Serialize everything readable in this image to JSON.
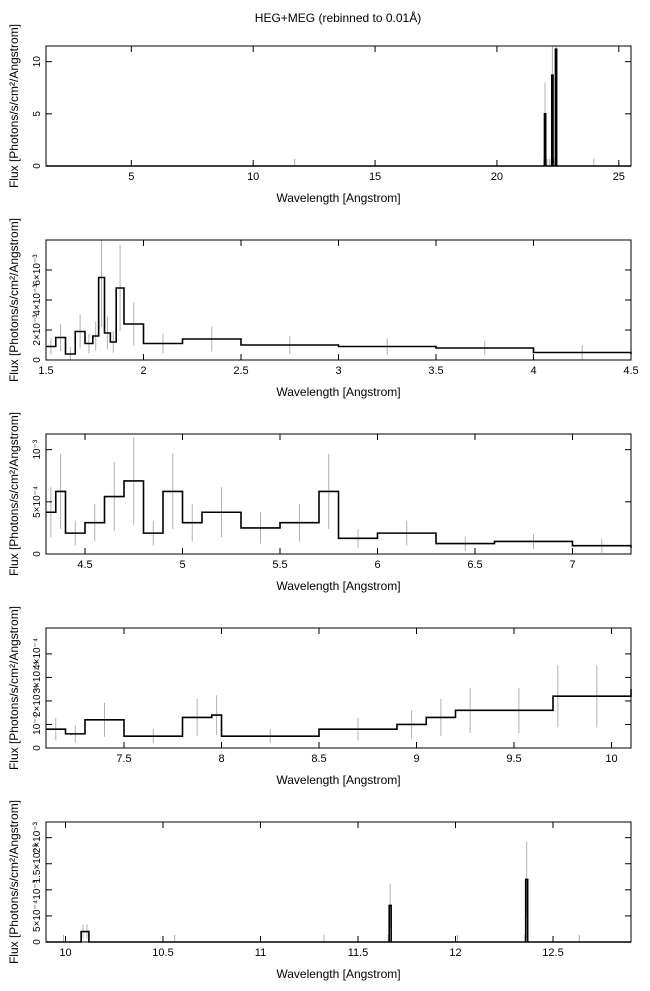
{
  "figure": {
    "title": "HEG+MEG (rebinned to 0.01Å)"
  },
  "colors": {
    "data": "#000000",
    "error_bars": "#b0b0b0",
    "frame": "#000000"
  },
  "chart_data": [
    {
      "type": "line",
      "step": true,
      "xlabel": "Wavelength [Angstrom]",
      "ylabel": "Flux [Photons/s/cm²/Angstrom]",
      "xlim": [
        1.5,
        25.5
      ],
      "ylim": [
        0,
        11.5
      ],
      "xticks": [
        5,
        10,
        15,
        20,
        25
      ],
      "xtick_labels": [
        "5",
        "10",
        "15",
        "20",
        "25"
      ],
      "yticks": [
        0,
        5,
        10
      ],
      "ytick_labels": [
        "0",
        "5",
        "10"
      ],
      "series": [
        {
          "x": [
            1.5,
            21.9,
            21.95,
            22.0,
            22.1,
            22.2,
            22.25,
            22.3,
            22.35,
            22.4,
            22.45,
            25.5
          ],
          "y": [
            0,
            0,
            5.0,
            0,
            0,
            0,
            8.7,
            0,
            0,
            11.2,
            0,
            0
          ]
        }
      ]
    },
    {
      "type": "line",
      "step": true,
      "xlabel": "Wavelength [Angstrom]",
      "ylabel": "Flux [Photons/s/cm²/Angstrom]",
      "xlim": [
        1.5,
        4.5
      ],
      "ylim": [
        0,
        0.008
      ],
      "xticks": [
        1.5,
        2,
        2.5,
        3,
        3.5,
        4,
        4.5
      ],
      "xtick_labels": [
        "1.5",
        "2",
        "2.5",
        "3",
        "3.5",
        "4",
        "4.5"
      ],
      "yticks": [
        0,
        0.002,
        0.004,
        0.006
      ],
      "ytick_labels": [
        "0",
        "2×10⁻³",
        "4×10⁻³",
        "6×10⁻³"
      ],
      "series": [
        {
          "x": [
            1.5,
            1.55,
            1.6,
            1.65,
            1.7,
            1.74,
            1.77,
            1.8,
            1.83,
            1.86,
            1.9,
            2.0,
            2.2,
            2.5,
            3.0,
            3.5,
            4.0,
            4.5
          ],
          "y": [
            0.0009,
            0.0015,
            0.0004,
            0.0019,
            0.0011,
            0.0016,
            0.0055,
            0.0018,
            0.0012,
            0.0048,
            0.0024,
            0.0011,
            0.0014,
            0.001,
            0.0009,
            0.0008,
            0.0005,
            0.0004
          ]
        }
      ]
    },
    {
      "type": "line",
      "step": true,
      "xlabel": "Wavelength [Angstrom]",
      "ylabel": "Flux [Photons/s/cm²/Angstrom]",
      "xlim": [
        4.3,
        7.3
      ],
      "ylim": [
        0,
        0.00115
      ],
      "xticks": [
        4.5,
        5,
        5.5,
        6,
        6.5,
        7
      ],
      "xtick_labels": [
        "4.5",
        "5",
        "5.5",
        "6",
        "6.5",
        "7"
      ],
      "yticks": [
        0,
        0.0005,
        0.001
      ],
      "ytick_labels": [
        "0",
        "5×10⁻⁴",
        "10⁻³"
      ],
      "series": [
        {
          "x": [
            4.3,
            4.35,
            4.4,
            4.5,
            4.6,
            4.7,
            4.8,
            4.9,
            5.0,
            5.1,
            5.3,
            5.5,
            5.7,
            5.8,
            6.0,
            6.3,
            6.6,
            7.0,
            7.3
          ],
          "y": [
            0.0004,
            0.0006,
            0.0002,
            0.0003,
            0.00055,
            0.0007,
            0.0002,
            0.0006,
            0.0003,
            0.0004,
            0.00025,
            0.0003,
            0.0006,
            0.00015,
            0.0002,
            0.0001,
            0.00012,
            8e-05,
            6e-05
          ]
        }
      ]
    },
    {
      "type": "line",
      "step": true,
      "xlabel": "Wavelength [Angstrom]",
      "ylabel": "Flux [Photons/s/cm²/Angstrom]",
      "xlim": [
        7.1,
        10.1
      ],
      "ylim": [
        0,
        0.00051
      ],
      "xticks": [
        7.5,
        8,
        8.5,
        9,
        9.5,
        10
      ],
      "xtick_labels": [
        "7.5",
        "8",
        "8.5",
        "9",
        "9.5",
        "10"
      ],
      "yticks": [
        0,
        0.0001,
        0.0002,
        0.0003,
        0.0004
      ],
      "ytick_labels": [
        "0",
        "10⁻⁴",
        "2×10⁻⁴",
        "3×10⁻⁴",
        "4×10⁻⁴"
      ],
      "series": [
        {
          "x": [
            7.1,
            7.2,
            7.3,
            7.5,
            7.8,
            7.95,
            8.0,
            8.5,
            8.9,
            9.05,
            9.2,
            9.35,
            9.7,
            9.75,
            10.1
          ],
          "y": [
            8e-05,
            6e-05,
            0.00012,
            5e-05,
            0.00013,
            0.00014,
            5e-05,
            8e-05,
            0.0001,
            0.00013,
            0.00016,
            0.00016,
            0.00022,
            0.00022,
            0.00025
          ]
        }
      ]
    },
    {
      "type": "line",
      "step": true,
      "xlabel": "Wavelength [Angstrom]",
      "ylabel": "Flux [Photons/s/cm²/Angstrom]",
      "xlim": [
        9.9,
        12.9
      ],
      "ylim": [
        0,
        0.0023
      ],
      "xticks": [
        10,
        10.5,
        11,
        11.5,
        12,
        12.5
      ],
      "xtick_labels": [
        "10",
        "10.5",
        "11",
        "11.5",
        "12",
        "12.5"
      ],
      "yticks": [
        0,
        0.0005,
        0.001,
        0.0015,
        0.002
      ],
      "ytick_labels": [
        "0",
        "5×10⁻⁴",
        "10⁻³",
        "1.5×10⁻³",
        "2×10⁻³"
      ],
      "series": [
        {
          "x": [
            9.9,
            10.08,
            10.1,
            10.12,
            11.0,
            11.65,
            11.66,
            11.67,
            12.35,
            12.36,
            12.37,
            12.9
          ],
          "y": [
            0.0,
            0.0002,
            0.0002,
            0.0,
            0.0,
            0.0,
            0.0007,
            0.0,
            0.0,
            0.0012,
            0.0,
            0.0
          ]
        }
      ]
    }
  ]
}
